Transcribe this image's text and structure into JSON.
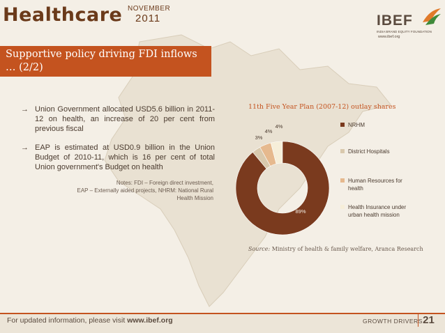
{
  "header": {
    "brand": "Healthcare",
    "month": "NOVEMBER",
    "year": "2011",
    "logo_text": "IBEF",
    "logo_subtitle": "INDIA BRAND EQUITY FOUNDATION",
    "logo_url": "www.ibef.org"
  },
  "title_bar": {
    "line1": "Supportive policy driving FDI inflows",
    "line2": "… (2/2)"
  },
  "bullets": [
    "Union Government allocated USD5.6 billion in 2011-12 on health, an increase of 20 per cent from previous fiscal",
    "EAP is estimated at USD0.9 billion in the Union Budget of 2010-11, which is 16 per cent of total Union government's Budget on health"
  ],
  "notes": {
    "line1": "Notes: FDI – Foreign direct investment,",
    "line2": "EAP – Externally aided projects, NHRM: National Rural Health Mission"
  },
  "chart_data": {
    "type": "pie",
    "title": "11th Five Year Plan (2007-12) outlay shares",
    "categories": [
      "NRHM",
      "District Hospitals",
      "Human Resources for health",
      "Health Insurance under urban health mission"
    ],
    "values": [
      89,
      3,
      4,
      4
    ],
    "data_labels": [
      "89%",
      "3%",
      "4%",
      "4%"
    ],
    "colors": [
      "#7a3a1e",
      "#d9c9ad",
      "#e6b98e",
      "#f6eed9"
    ],
    "donut": true,
    "legend_position": "right"
  },
  "legend": {
    "items": [
      "NRHM",
      "District Hospitals",
      "Human Resources for health",
      "Health Insurance under urban health mission"
    ]
  },
  "source": {
    "label": "Source:",
    "text": " Ministry of health & family welfare, Aranca Research"
  },
  "footer": {
    "text_prefix": "For updated information, please visit ",
    "url": "www.ibef.org",
    "section": "GROWTH DRIVERS",
    "page_number": "21"
  },
  "colors": {
    "accent": "#c4531f",
    "brand": "#6b3a1a"
  }
}
